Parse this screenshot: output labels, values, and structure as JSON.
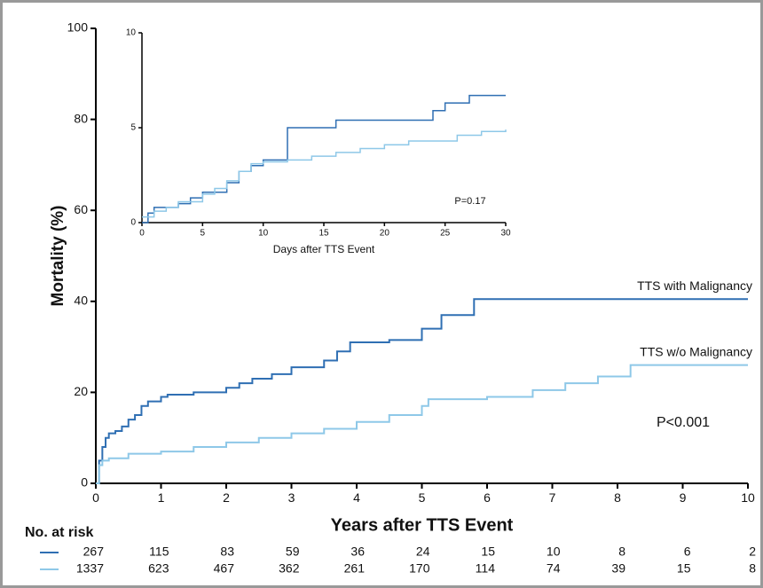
{
  "chart_data": [
    {
      "type": "step",
      "ylabel": "Mortality (%)",
      "xlabel": "Years after TTS Event",
      "xlim": [
        0,
        10
      ],
      "ylim": [
        0,
        100
      ],
      "xticks": [
        0,
        1,
        2,
        3,
        4,
        5,
        6,
        7,
        8,
        9,
        10
      ],
      "yticks": [
        0,
        20,
        40,
        60,
        80,
        100
      ],
      "annotation": "P<0.001",
      "series": [
        {
          "name": "TTS with Malignancy",
          "color": "#2f6fb3",
          "x": [
            0,
            0.05,
            0.1,
            0.15,
            0.2,
            0.3,
            0.4,
            0.5,
            0.6,
            0.7,
            0.8,
            1.0,
            1.1,
            1.5,
            2.0,
            2.2,
            2.4,
            2.7,
            3.0,
            3.5,
            3.7,
            3.9,
            4.5,
            5.0,
            5.3,
            5.8,
            10
          ],
          "values": [
            0,
            5,
            8,
            10,
            11,
            11.5,
            12.5,
            14,
            15,
            17,
            18,
            19,
            19.5,
            20,
            21,
            22,
            23,
            24,
            25.5,
            27,
            29,
            31,
            31.5,
            34,
            37,
            40.5,
            40.5
          ]
        },
        {
          "name": "TTS w/o Malignancy",
          "color": "#8ec8e8",
          "x": [
            0,
            0.05,
            0.1,
            0.2,
            0.5,
            1.0,
            1.5,
            2.0,
            2.5,
            3.0,
            3.5,
            4.0,
            4.5,
            5.0,
            5.1,
            6.0,
            6.7,
            7.2,
            7.7,
            8.2,
            10
          ],
          "values": [
            0,
            4,
            5,
            5.5,
            6.5,
            7,
            8,
            9,
            10,
            11,
            12,
            13.5,
            15,
            17,
            18.5,
            19,
            20.5,
            22,
            23.5,
            26,
            26
          ]
        }
      ],
      "risk_table": {
        "title": "No. at risk",
        "rows": [
          [
            267,
            115,
            83,
            59,
            36,
            24,
            15,
            10,
            8,
            6,
            2
          ],
          [
            1337,
            623,
            467,
            362,
            261,
            170,
            114,
            74,
            39,
            15,
            8
          ]
        ]
      }
    },
    {
      "type": "step",
      "xlabel": "Days after TTS Event",
      "xlim": [
        0,
        30
      ],
      "ylim": [
        0,
        10
      ],
      "xticks": [
        0,
        5,
        10,
        15,
        20,
        25,
        30
      ],
      "yticks": [
        0,
        5,
        10
      ],
      "annotation": "P=0.17",
      "series": [
        {
          "color": "#2f6fb3",
          "x": [
            0,
            0.5,
            1,
            3,
            4,
            5,
            7,
            8,
            9,
            10,
            12,
            16,
            24,
            25,
            27,
            30
          ],
          "values": [
            0,
            0.5,
            0.8,
            1,
            1.3,
            1.6,
            2.1,
            2.7,
            3,
            3.3,
            5,
            5.4,
            5.9,
            6.3,
            6.7,
            6.7
          ]
        },
        {
          "color": "#8ec8e8",
          "x": [
            0,
            1,
            2,
            3,
            5,
            6,
            7,
            8,
            9,
            10,
            12,
            14,
            16,
            18,
            20,
            22,
            26,
            28,
            30
          ],
          "values": [
            0.3,
            0.6,
            0.8,
            1.1,
            1.5,
            1.8,
            2.2,
            2.7,
            3.1,
            3.2,
            3.3,
            3.5,
            3.7,
            3.9,
            4.1,
            4.3,
            4.6,
            4.8,
            4.9
          ]
        }
      ]
    }
  ]
}
